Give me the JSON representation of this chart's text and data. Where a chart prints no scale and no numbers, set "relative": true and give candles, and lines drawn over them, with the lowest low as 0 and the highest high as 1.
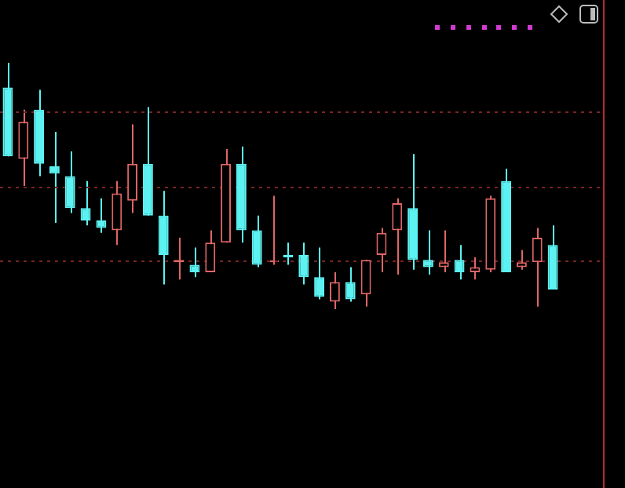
{
  "chart_data": {
    "type": "candlestick",
    "relative": true,
    "tick_labels": false,
    "ref_lines": [
      {
        "axis": "y",
        "value": 0.8,
        "color": "#7a2424",
        "line_style": "dotted"
      },
      {
        "axis": "y",
        "value": 0.5,
        "color": "#7a2424",
        "line_style": "dotted"
      },
      {
        "axis": "y",
        "value": 0.2,
        "color": "#7a2424",
        "line_style": "dotted"
      }
    ],
    "categories": [
      null,
      null,
      null,
      null,
      null,
      null,
      null,
      null,
      null,
      null,
      null,
      null,
      null,
      null,
      null,
      null,
      null,
      null,
      null,
      null,
      null,
      null,
      null,
      null,
      null,
      null,
      null,
      null,
      null,
      null,
      null,
      null,
      null,
      null,
      null,
      null
    ],
    "ohlc": [
      [
        0.9,
        1,
        0.62,
        0.62
      ],
      [
        0.61,
        0.81,
        0.5,
        0.76
      ],
      [
        0.81,
        0.89,
        0.54,
        0.59
      ],
      [
        0.58,
        0.72,
        0.35,
        0.55
      ],
      [
        0.54,
        0.64,
        0.39,
        0.41
      ],
      [
        0.41,
        0.52,
        0.34,
        0.36
      ],
      [
        0.36,
        0.45,
        0.31,
        0.33
      ],
      [
        0.32,
        0.52,
        0.26,
        0.47
      ],
      [
        0.44,
        0.75,
        0.39,
        0.59
      ],
      [
        0.59,
        0.82,
        0.38,
        0.38
      ],
      [
        0.38,
        0.48,
        0.1,
        0.22
      ],
      [
        0.19,
        0.29,
        0.12,
        0.2
      ],
      [
        0.18,
        0.25,
        0.13,
        0.15
      ],
      [
        0.15,
        0.32,
        0.15,
        0.27
      ],
      [
        0.27,
        0.65,
        0.27,
        0.59
      ],
      [
        0.59,
        0.66,
        0.27,
        0.32
      ],
      [
        0.32,
        0.38,
        0.17,
        0.18
      ],
      [
        0.2,
        0.46,
        0.18,
        0.2
      ],
      [
        0.22,
        0.27,
        0.18,
        0.21
      ],
      [
        0.22,
        0.27,
        0.1,
        0.13
      ],
      [
        0.13,
        0.25,
        0.04,
        0.05
      ],
      [
        0.03,
        0.15,
        0,
        0.11
      ],
      [
        0.11,
        0.17,
        0.03,
        0.04
      ],
      [
        0.06,
        0.2,
        0.01,
        0.2
      ],
      [
        0.22,
        0.33,
        0.15,
        0.31
      ],
      [
        0.32,
        0.45,
        0.14,
        0.43
      ],
      [
        0.41,
        0.63,
        0.16,
        0.2
      ],
      [
        0.2,
        0.32,
        0.14,
        0.17
      ],
      [
        0.17,
        0.32,
        0.15,
        0.19
      ],
      [
        0.2,
        0.26,
        0.12,
        0.15
      ],
      [
        0.15,
        0.21,
        0.12,
        0.17
      ],
      [
        0.16,
        0.46,
        0.15,
        0.45
      ],
      [
        0.52,
        0.57,
        0.15,
        0.15
      ],
      [
        0.17,
        0.24,
        0.16,
        0.19
      ],
      [
        0.19,
        0.33,
        0.01,
        0.29
      ],
      [
        0.26,
        0.34,
        0.08,
        0.08
      ]
    ],
    "colors": [
      "#5cf2f2",
      "#e06666",
      "#5cf2f2",
      "#5cf2f2",
      "#5cf2f2",
      "#5cf2f2",
      "#5cf2f2",
      "#e06666",
      "#e06666",
      "#5cf2f2",
      "#5cf2f2",
      "#e06666",
      "#5cf2f2",
      "#e06666",
      "#e06666",
      "#5cf2f2",
      "#5cf2f2",
      "#e06666",
      "#5cf2f2",
      "#5cf2f2",
      "#5cf2f2",
      "#e06666",
      "#5cf2f2",
      "#e06666",
      "#e06666",
      "#e06666",
      "#5cf2f2",
      "#5cf2f2",
      "#e06666",
      "#5cf2f2",
      "#e06666",
      "#e06666",
      "#5cf2f2",
      "#e06666",
      "#e06666",
      "#5cf2f2"
    ]
  }
}
